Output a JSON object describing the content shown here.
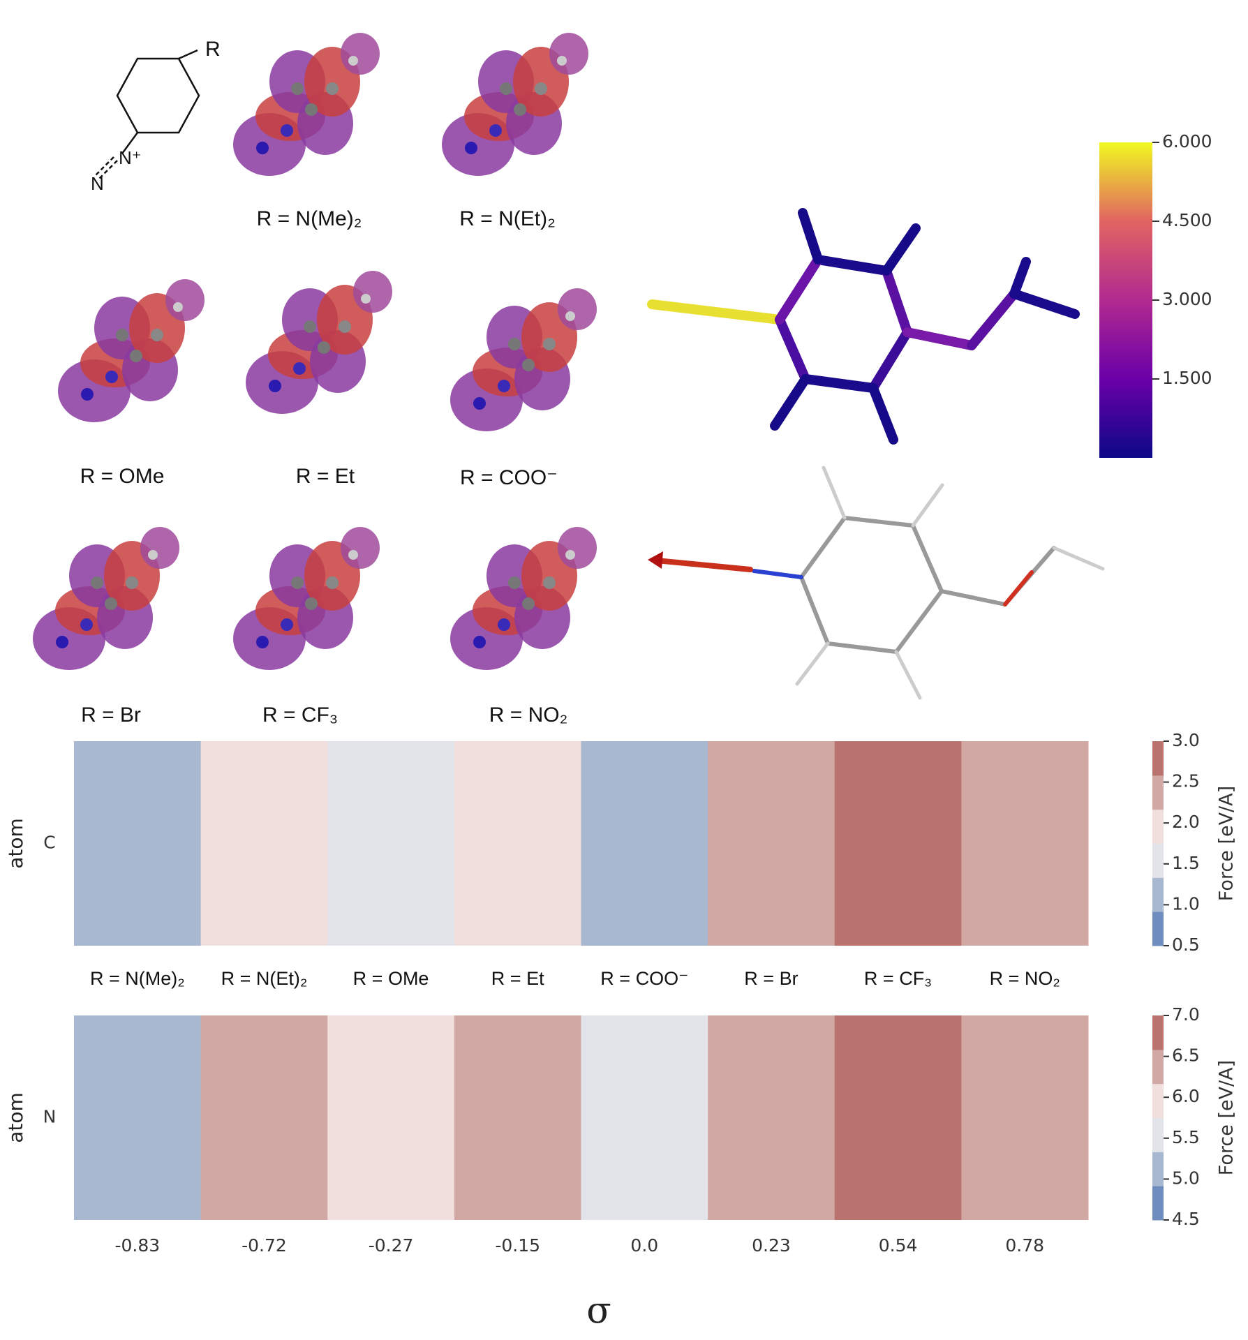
{
  "structure": {
    "substituent": "R",
    "n_inner": "N⁺",
    "n_outer": "N"
  },
  "orbitals": {
    "labels": [
      "R = N(Me)₂",
      "R = N(Et)₂",
      "R = OMe",
      "R = Et",
      "R = COO⁻",
      "R = Br",
      "R = CF₃",
      "R = NO₂"
    ]
  },
  "render_colorbar": {
    "ylim": [
      0,
      6
    ],
    "yticks": [
      {
        "value": 6,
        "label": "6.000"
      },
      {
        "value": 4.5,
        "label": "4.500"
      },
      {
        "value": 3,
        "label": "3.000"
      },
      {
        "value": 1.5,
        "label": "1.500"
      }
    ]
  },
  "substituents": [
    "R = N(Me)₂",
    "R = N(Et)₂",
    "R = OMe",
    "R = Et",
    "R = COO⁻",
    "R = Br",
    "R = CF₃",
    "R = NO₂"
  ],
  "chart_data": [
    {
      "type": "heatmap",
      "ylabel": "atom",
      "rows": [
        "C"
      ],
      "categories": [
        "-0.83",
        "-0.72",
        "-0.27",
        "-0.15",
        "0.0",
        "0.23",
        "0.54",
        "0.78"
      ],
      "values": [
        [
          1.1,
          2.1,
          1.6,
          2.1,
          1.1,
          2.5,
          2.9,
          2.5
        ]
      ],
      "colorbar_label": "Force [eV/A]",
      "clim": [
        0.5,
        3.0
      ],
      "cticks": [
        0.5,
        {
          "value": 1,
          "label": "1.0"
        },
        1.5,
        {
          "value": 2,
          "label": "2.0"
        },
        2.5,
        {
          "value": 3,
          "label": "3.0"
        }
      ],
      "colors": [
        "#6f8ebf",
        "#a9b8d1",
        "#e3e4e9",
        "#f0dfdd",
        "#d2a8a5",
        "#b9726e"
      ],
      "show_xticks": false
    },
    {
      "type": "heatmap",
      "ylabel": "atom",
      "rows": [
        "N"
      ],
      "xlabel": "σ",
      "categories": [
        "-0.83",
        "-0.72",
        "-0.27",
        "-0.15",
        "0.0",
        "0.23",
        "0.54",
        "0.78"
      ],
      "values": [
        [
          5.1,
          6.3,
          5.9,
          6.3,
          5.6,
          6.3,
          6.8,
          6.3
        ]
      ],
      "colorbar_label": "Force [eV/A]",
      "clim": [
        4.5,
        7.0
      ],
      "cticks": [
        4.5,
        {
          "value": 5,
          "label": "5.0"
        },
        5.5,
        {
          "value": 6,
          "label": "6.0"
        },
        6.5,
        {
          "value": 7,
          "label": "7.0"
        }
      ],
      "colors": [
        "#6f8ebf",
        "#a9b8d1",
        "#e3e4e9",
        "#f0dfdd",
        "#d2a8a5",
        "#b9726e"
      ],
      "show_xticks": true
    }
  ]
}
